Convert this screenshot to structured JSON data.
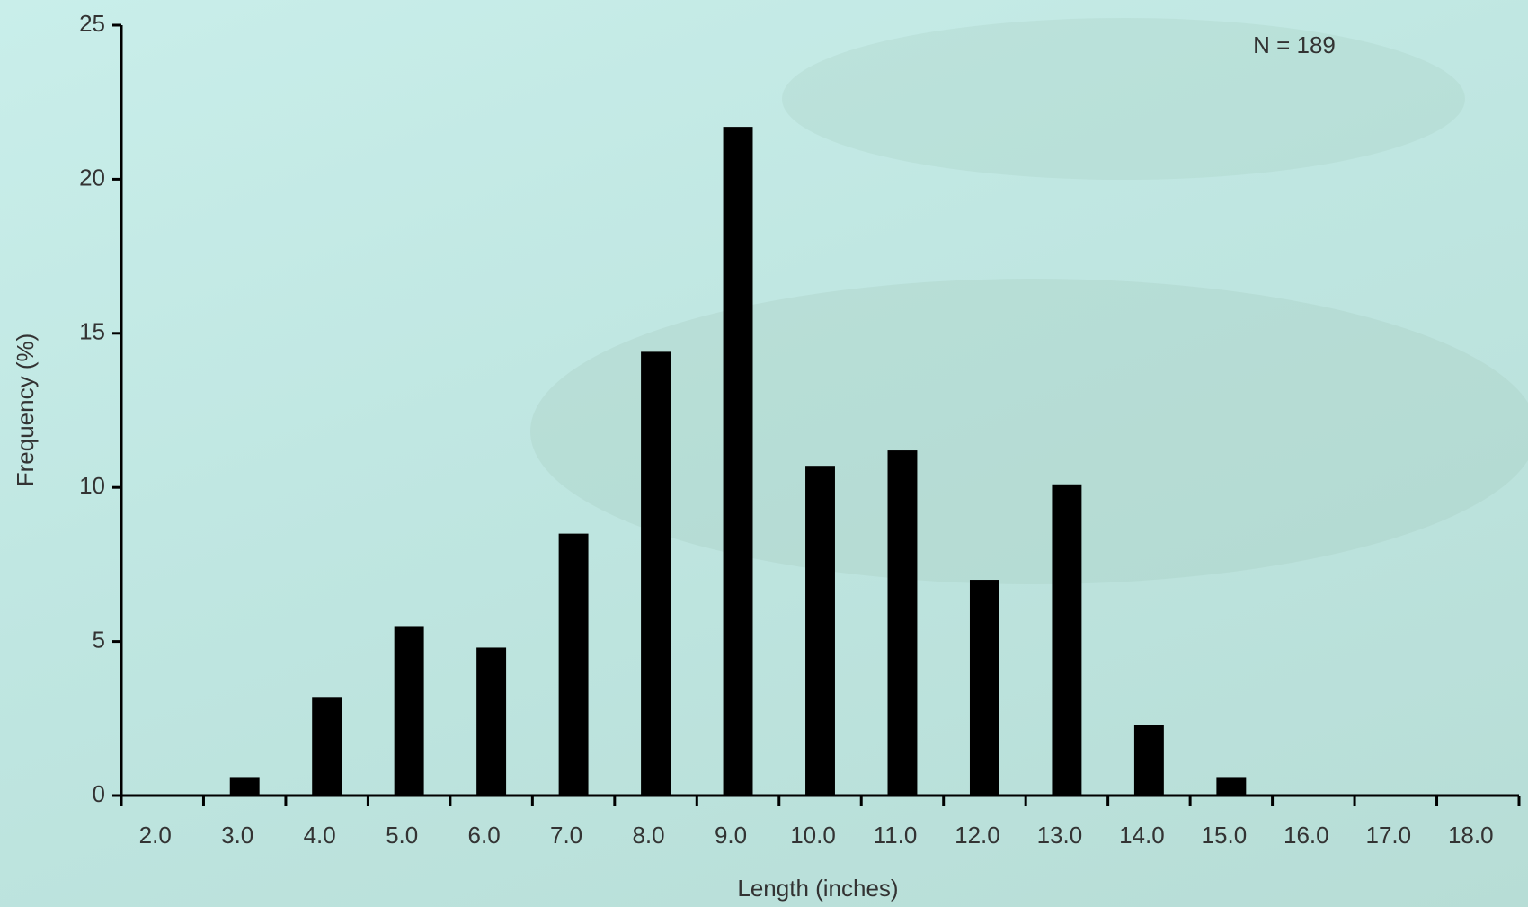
{
  "chart_data": {
    "type": "bar",
    "annotation": "N = 189",
    "x_label": "Length (inches)",
    "y_label": "Frequency (%)",
    "categories": [
      "2.0",
      "3.0",
      "4.0",
      "5.0",
      "6.0",
      "7.0",
      "8.0",
      "9.0",
      "10.0",
      "11.0",
      "12.0",
      "13.0",
      "14.0",
      "15.0",
      "16.0",
      "17.0",
      "18.0"
    ],
    "values": [
      0,
      0.6,
      3.2,
      5.5,
      4.8,
      8.5,
      14.4,
      21.7,
      10.7,
      11.2,
      7.0,
      10.1,
      2.3,
      0.6,
      0,
      0,
      0
    ],
    "color": "#000000",
    "ylim": [
      0,
      25
    ],
    "yticks": [
      0,
      5,
      10,
      15,
      20,
      25
    ],
    "grid": false
  }
}
